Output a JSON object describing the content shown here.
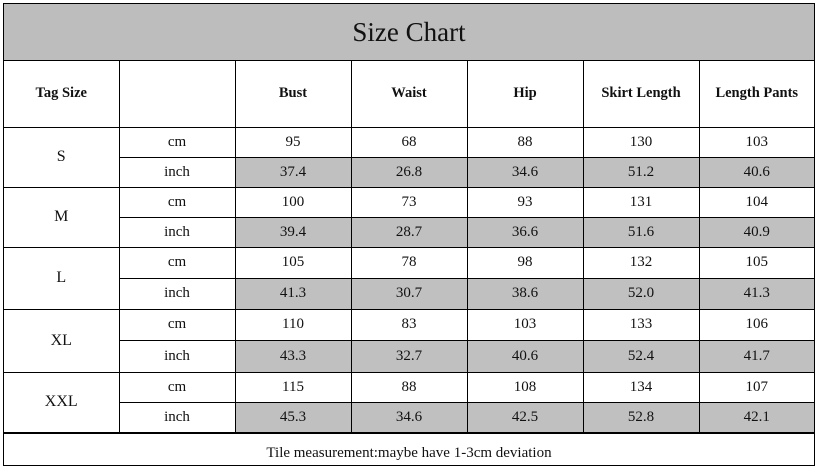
{
  "title": "Size Chart",
  "headers": [
    "Tag Size",
    "",
    "Bust",
    "Waist",
    "Hip",
    "Skirt Length",
    "Length Pants"
  ],
  "rows": [
    {
      "size": "S",
      "cm_label": "cm",
      "inch_label": "inch",
      "cm": [
        "95",
        "68",
        "88",
        "130",
        "103"
      ],
      "inch": [
        "37.4",
        "26.8",
        "34.6",
        "51.2",
        "40.6"
      ]
    },
    {
      "size": "M",
      "cm_label": "cm",
      "inch_label": "inch",
      "cm": [
        "100",
        "73",
        "93",
        "131",
        "104"
      ],
      "inch": [
        "39.4",
        "28.7",
        "36.6",
        "51.6",
        "40.9"
      ]
    },
    {
      "size": "L",
      "cm_label": "cm",
      "inch_label": "inch",
      "cm": [
        "105",
        "78",
        "98",
        "132",
        "105"
      ],
      "inch": [
        "41.3",
        "30.7",
        "38.6",
        "52.0",
        "41.3"
      ]
    },
    {
      "size": "XL",
      "cm_label": "cm",
      "inch_label": "inch",
      "cm": [
        "110",
        "83",
        "103",
        "133",
        "106"
      ],
      "inch": [
        "43.3",
        "32.7",
        "40.6",
        "52.4",
        "41.7"
      ]
    },
    {
      "size": "XXL",
      "cm_label": "cm",
      "inch_label": "inch",
      "cm": [
        "115",
        "88",
        "108",
        "134",
        "107"
      ],
      "inch": [
        "45.3",
        "34.6",
        "42.5",
        "52.8",
        "42.1"
      ]
    }
  ],
  "footer": "Tile measurement:maybe have 1-3cm deviation",
  "colors": {
    "header_fill": "#bdbdbd",
    "inch_fill": "#c0c0c0",
    "border": "#000000"
  }
}
